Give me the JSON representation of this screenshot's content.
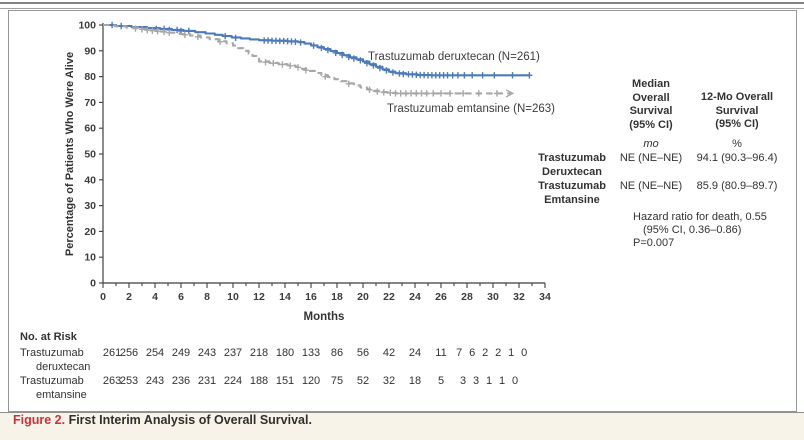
{
  "figure": {
    "caption_label": "Figure 2.",
    "caption_text": " First Interim Analysis of Overall Survival.",
    "caption_label_color": "#c4353b",
    "caption_bar_bg": "#f7f3e8"
  },
  "chart_data": {
    "type": "line",
    "subtype": "kaplan_meier_step",
    "title": "",
    "xlabel": "Months",
    "ylabel": "Percentage of Patients Who Were Alive",
    "xlim": [
      0,
      34
    ],
    "ylim": [
      0,
      100
    ],
    "x_ticks": [
      0,
      2,
      4,
      6,
      8,
      10,
      12,
      14,
      16,
      18,
      20,
      22,
      24,
      26,
      28,
      30,
      32,
      34
    ],
    "y_ticks": [
      0,
      10,
      20,
      30,
      40,
      50,
      60,
      70,
      80,
      90,
      100
    ],
    "grid": false,
    "legend_position": "inline-right-of-curves",
    "series": [
      {
        "name": "Trastuzumab deruxtecan (N=261)",
        "color": "#4d7bba",
        "line_style": "solid",
        "end_arrow": false,
        "points": [
          [
            0,
            100
          ],
          [
            1.0,
            99.6
          ],
          [
            2.2,
            99.2
          ],
          [
            3.4,
            98.8
          ],
          [
            4.4,
            98.5
          ],
          [
            5.3,
            98.1
          ],
          [
            6.2,
            97.7
          ],
          [
            7.1,
            97.2
          ],
          [
            7.9,
            96.7
          ],
          [
            8.6,
            96.2
          ],
          [
            9.2,
            95.7
          ],
          [
            9.9,
            95.2
          ],
          [
            10.6,
            94.8
          ],
          [
            11.3,
            94.4
          ],
          [
            12.0,
            94.1
          ],
          [
            13.0,
            93.9
          ],
          [
            14.2,
            93.7
          ],
          [
            15.0,
            93.4
          ],
          [
            15.5,
            92.8
          ],
          [
            16.0,
            92.1
          ],
          [
            16.5,
            91.4
          ],
          [
            17.0,
            90.7
          ],
          [
            17.5,
            89.9
          ],
          [
            18.0,
            89.1
          ],
          [
            18.5,
            88.3
          ],
          [
            19.0,
            87.5
          ],
          [
            19.5,
            86.7
          ],
          [
            20.0,
            85.8
          ],
          [
            20.5,
            84.8
          ],
          [
            21.0,
            83.8
          ],
          [
            21.5,
            82.8
          ],
          [
            22.0,
            81.9
          ],
          [
            22.5,
            81.3
          ],
          [
            23.3,
            80.9
          ],
          [
            24.2,
            80.6
          ],
          [
            25.2,
            80.5
          ],
          [
            32.8,
            80.5
          ]
        ],
        "censors": [
          [
            0.7,
            100
          ],
          [
            1.4,
            99.6
          ],
          [
            4.1,
            98.5
          ],
          [
            4.7,
            98.5
          ],
          [
            5.1,
            98.1
          ],
          [
            5.7,
            98.1
          ],
          [
            6.0,
            97.7
          ],
          [
            6.6,
            97.7
          ],
          [
            9.4,
            95.7
          ],
          [
            10.2,
            95.0
          ],
          [
            12.4,
            94.0
          ],
          [
            12.7,
            94.0
          ],
          [
            13.0,
            93.9
          ],
          [
            13.3,
            93.9
          ],
          [
            13.6,
            93.8
          ],
          [
            13.9,
            93.8
          ],
          [
            14.2,
            93.7
          ],
          [
            14.5,
            93.6
          ],
          [
            14.8,
            93.5
          ],
          [
            15.2,
            93.2
          ],
          [
            16.2,
            92.0
          ],
          [
            16.8,
            91.1
          ],
          [
            17.3,
            90.3
          ],
          [
            17.9,
            89.2
          ],
          [
            18.4,
            88.4
          ],
          [
            18.9,
            87.6
          ],
          [
            19.3,
            87.0
          ],
          [
            19.8,
            86.3
          ],
          [
            20.3,
            85.2
          ],
          [
            20.8,
            84.3
          ],
          [
            21.3,
            83.3
          ],
          [
            21.8,
            82.4
          ],
          [
            22.3,
            81.6
          ],
          [
            22.8,
            81.2
          ],
          [
            23.1,
            81.0
          ],
          [
            23.5,
            80.9
          ],
          [
            23.8,
            80.8
          ],
          [
            24.1,
            80.7
          ],
          [
            24.4,
            80.6
          ],
          [
            24.7,
            80.6
          ],
          [
            25.0,
            80.5
          ],
          [
            25.3,
            80.5
          ],
          [
            25.6,
            80.5
          ],
          [
            25.9,
            80.5
          ],
          [
            26.2,
            80.5
          ],
          [
            26.5,
            80.5
          ],
          [
            26.9,
            80.5
          ],
          [
            27.3,
            80.5
          ],
          [
            27.8,
            80.5
          ],
          [
            28.4,
            80.5
          ],
          [
            29.2,
            80.5
          ],
          [
            30.1,
            80.5
          ],
          [
            31.5,
            80.5
          ],
          [
            32.8,
            80.5
          ]
        ]
      },
      {
        "name": "Trastuzumab emtansine (N=263)",
        "color": "#a7a7a7",
        "line_style": "dashed",
        "end_arrow": true,
        "points": [
          [
            0,
            100
          ],
          [
            0.9,
            99.5
          ],
          [
            1.8,
            99.0
          ],
          [
            2.7,
            98.5
          ],
          [
            3.5,
            98.0
          ],
          [
            4.3,
            97.5
          ],
          [
            5.1,
            97.0
          ],
          [
            5.9,
            96.5
          ],
          [
            6.7,
            95.9
          ],
          [
            7.5,
            95.2
          ],
          [
            8.2,
            94.5
          ],
          [
            8.9,
            93.7
          ],
          [
            9.5,
            92.9
          ],
          [
            10.0,
            92.0
          ],
          [
            10.4,
            91.0
          ],
          [
            10.8,
            90.0
          ],
          [
            11.2,
            89.0
          ],
          [
            11.5,
            88.0
          ],
          [
            11.8,
            87.0
          ],
          [
            12.0,
            85.9
          ],
          [
            12.8,
            85.3
          ],
          [
            13.5,
            84.8
          ],
          [
            14.2,
            84.3
          ],
          [
            14.8,
            83.8
          ],
          [
            15.3,
            83.0
          ],
          [
            15.8,
            82.2
          ],
          [
            16.3,
            81.4
          ],
          [
            16.8,
            80.6
          ],
          [
            17.3,
            79.8
          ],
          [
            17.8,
            79.0
          ],
          [
            18.3,
            78.2
          ],
          [
            18.8,
            77.4
          ],
          [
            19.3,
            76.6
          ],
          [
            19.8,
            75.8
          ],
          [
            20.3,
            75.1
          ],
          [
            20.8,
            74.5
          ],
          [
            21.3,
            74.0
          ],
          [
            21.9,
            73.7
          ],
          [
            22.6,
            73.5
          ],
          [
            31.4,
            73.5
          ]
        ],
        "censors": [
          [
            2.5,
            98.6
          ],
          [
            3.0,
            98.3
          ],
          [
            3.4,
            98.0
          ],
          [
            3.8,
            97.8
          ],
          [
            4.2,
            97.6
          ],
          [
            4.7,
            97.3
          ],
          [
            5.1,
            97.0
          ],
          [
            6.3,
            96.2
          ],
          [
            7.3,
            95.4
          ],
          [
            9.0,
            93.5
          ],
          [
            12.5,
            85.6
          ],
          [
            13.1,
            85.2
          ],
          [
            13.8,
            84.7
          ],
          [
            14.4,
            84.2
          ],
          [
            15.0,
            83.6
          ],
          [
            15.6,
            82.5
          ],
          [
            17.1,
            80.0
          ],
          [
            18.9,
            77.2
          ],
          [
            20.5,
            74.9
          ],
          [
            21.1,
            74.2
          ],
          [
            21.6,
            73.9
          ],
          [
            22.1,
            73.7
          ],
          [
            22.5,
            73.5
          ],
          [
            22.9,
            73.5
          ],
          [
            23.3,
            73.5
          ],
          [
            23.7,
            73.5
          ],
          [
            24.1,
            73.5
          ],
          [
            24.5,
            73.5
          ],
          [
            24.9,
            73.5
          ],
          [
            25.4,
            73.5
          ],
          [
            26.0,
            73.5
          ],
          [
            26.7,
            73.5
          ],
          [
            27.7,
            73.5
          ],
          [
            28.9,
            73.5
          ],
          [
            30.3,
            73.5
          ]
        ]
      }
    ]
  },
  "stats_panel": {
    "col1_header": "Median\nOverall\nSurvival\n(95% CI)",
    "col2_header": "12-Mo Overall\nSurvival\n(95% CI)",
    "col1_unit": "mo",
    "col2_unit": "%",
    "rows": [
      {
        "label": "Trastuzumab\nDeruxtecan",
        "median": "NE (NE–NE)",
        "twelve_mo": "94.1 (90.3–96.4)"
      },
      {
        "label": "Trastuzumab\nEmtansine",
        "median": "NE (NE–NE)",
        "twelve_mo": "85.9 (80.9–89.7)"
      }
    ],
    "hazard_line1": "Hazard ratio for death, 0.55",
    "hazard_line2": "(95% CI, 0.36–0.86)",
    "hazard_line3": "P=0.007"
  },
  "at_risk": {
    "title": "No. at Risk",
    "rows": [
      {
        "label_line1": "Trastuzumab",
        "label_line2": "deruxtecan",
        "values": [
          261,
          256,
          254,
          249,
          243,
          237,
          218,
          180,
          133,
          86,
          56,
          42,
          24,
          11,
          7,
          6,
          2,
          2,
          1,
          0
        ],
        "positions": [
          0.7,
          2,
          4,
          6,
          8,
          10,
          12,
          14,
          16,
          18,
          20,
          22,
          24,
          26,
          27.4,
          28.4,
          29.4,
          30.4,
          31.4,
          32.4
        ]
      },
      {
        "label_line1": "Trastuzumab",
        "label_line2": "emtansine",
        "values": [
          263,
          253,
          243,
          236,
          231,
          224,
          188,
          151,
          120,
          75,
          52,
          32,
          18,
          5,
          3,
          3,
          1,
          1,
          0
        ],
        "positions": [
          0.7,
          2,
          4,
          6,
          8,
          10,
          12,
          14,
          16,
          18,
          20,
          22,
          24,
          26,
          27.7,
          28.7,
          29.7,
          30.7,
          31.7
        ]
      }
    ]
  }
}
